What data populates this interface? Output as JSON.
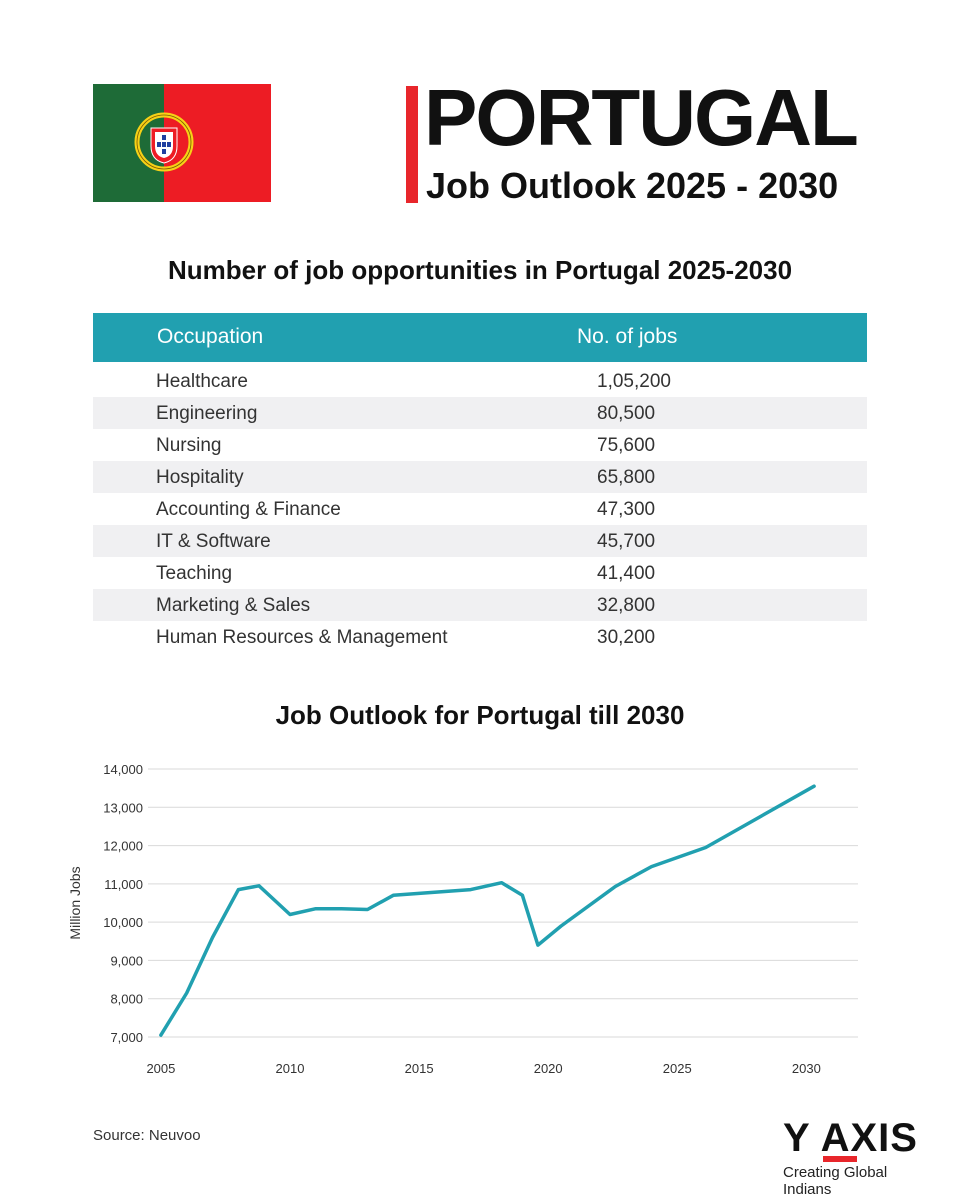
{
  "header": {
    "title": "PORTUGAL",
    "subtitle": "Job Outlook 2025 - 2030"
  },
  "colors": {
    "flag_green": "#1e6b37",
    "flag_red": "#ed1c24",
    "accent_red": "#e8262b",
    "table_header": "#21a0b0",
    "line": "#21a0b0"
  },
  "table": {
    "heading": "Number of job opportunities in Portugal 2025-2030",
    "columns": [
      "Occupation",
      "No. of jobs"
    ],
    "rows": [
      {
        "occupation": "Healthcare",
        "jobs": "1,05,200"
      },
      {
        "occupation": "Engineering",
        "jobs": "80,500"
      },
      {
        "occupation": "Nursing",
        "jobs": "75,600"
      },
      {
        "occupation": "Hospitality",
        "jobs": "65,800"
      },
      {
        "occupation": "Accounting & Finance",
        "jobs": "47,300"
      },
      {
        "occupation": "IT & Software",
        "jobs": "45,700"
      },
      {
        "occupation": "Teaching",
        "jobs": "41,400"
      },
      {
        "occupation": "Marketing & Sales",
        "jobs": "32,800"
      },
      {
        "occupation": "Human Resources & Management",
        "jobs": "30,200"
      }
    ]
  },
  "chart_data": {
    "type": "line",
    "title": "Job Outlook for Portugal till 2030",
    "xlabel": "",
    "ylabel": "Million Jobs",
    "xlim": [
      2004.5,
      2032
    ],
    "ylim": [
      7000,
      14000
    ],
    "x_ticks": [
      2005,
      2010,
      2015,
      2020,
      2025,
      2030
    ],
    "y_ticks": [
      7000,
      8000,
      9000,
      10000,
      11000,
      12000,
      13000,
      14000
    ],
    "y_tick_labels": [
      "7,000",
      "8,000",
      "9,000",
      "10,000",
      "11,000",
      "12,000",
      "13,000",
      "14,000"
    ],
    "grid": true,
    "series": [
      {
        "x": [
          2005,
          2006,
          2007,
          2008,
          2008.8,
          2010,
          2011,
          2012,
          2013,
          2014,
          2015,
          2016,
          2017,
          2018.2,
          2019,
          2019.6,
          2020.5,
          2022.6,
          2024,
          2026.1,
          2030.3
        ],
        "values": [
          7050,
          8150,
          9600,
          10850,
          10950,
          10200,
          10350,
          10350,
          10330,
          10700,
          10750,
          10800,
          10850,
          11030,
          10700,
          9400,
          9900,
          10930,
          11450,
          11950,
          13550
        ]
      }
    ]
  },
  "source": "Source: Neuvoo",
  "logo": {
    "text": "Y AXIS",
    "tagline": "Creating Global Indians"
  }
}
